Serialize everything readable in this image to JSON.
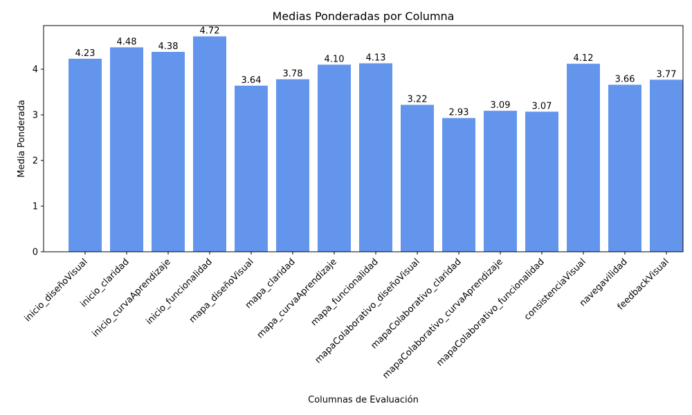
{
  "chart_data": {
    "type": "bar",
    "title": "Medias Ponderadas por Columna",
    "xlabel": "Columnas de Evaluación",
    "ylabel": "Media Ponderada",
    "categories": [
      "inicio_diseñoVisual",
      "inicio_claridad",
      "inicio_curvaAprendizaje",
      "inicio_funcionalidad",
      "mapa_diseñoVisual",
      "mapa_claridad",
      "mapa_curvaAprendizaje",
      "mapa_funcionalidad",
      "mapaColaborativo_diseñoVisual",
      "mapaColaborativo_claridad",
      "mapaColaborativo_curvaAprendizaje",
      "mapaColaborativo_funcionalidad",
      "consistenciaVisual",
      "navegavilidad",
      "feedbackVisual"
    ],
    "values": [
      4.23,
      4.48,
      4.38,
      4.72,
      3.64,
      3.78,
      4.1,
      4.13,
      3.22,
      2.93,
      3.09,
      3.07,
      4.12,
      3.66,
      3.77
    ],
    "value_labels": [
      "4.23",
      "4.48",
      "4.38",
      "4.72",
      "3.64",
      "3.78",
      "4.10",
      "4.13",
      "3.22",
      "2.93",
      "3.09",
      "3.07",
      "4.12",
      "3.66",
      "3.77"
    ],
    "yticks": [
      0,
      1,
      2,
      3,
      4
    ],
    "ylim": [
      0,
      4.956
    ],
    "grid": false,
    "bar_color": "#6495ED"
  }
}
